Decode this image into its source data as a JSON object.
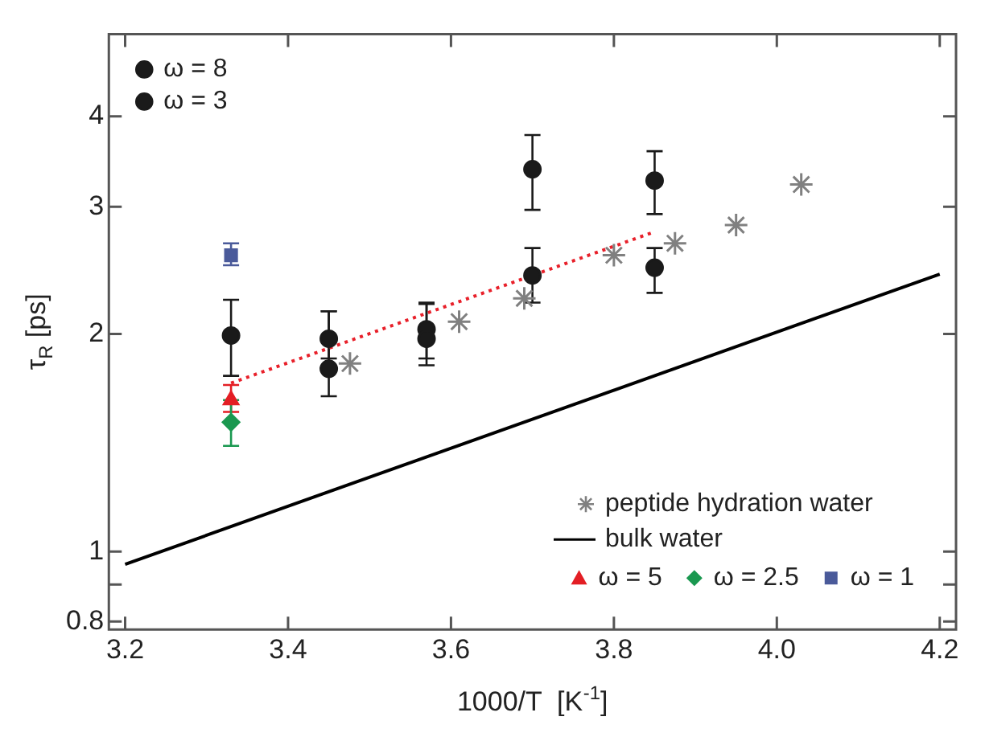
{
  "chart_data": {
    "type": "scatter",
    "xlabel": "1000/T  [K$^{-1}$]",
    "ylabel": "τ$_{R}$ [ps]",
    "log": "y",
    "xlim": [
      3.18,
      4.22
    ],
    "xticks": [
      {
        "value": 3.2,
        "label": "3.2"
      },
      {
        "value": 3.4,
        "label": "3.4"
      },
      {
        "value": 3.6,
        "label": "3.6"
      },
      {
        "value": 3.8,
        "label": "3.8"
      },
      {
        "value": 4.0,
        "label": "4.0"
      },
      {
        "value": 4.2,
        "label": "4.2"
      }
    ],
    "ylim": [
      0.78,
      5.2
    ],
    "yticks": [
      0.8,
      {
        "value": 0.9,
        "label": null
      },
      1,
      2,
      3,
      4
    ],
    "grid": false,
    "legend": "top left",
    "series": [
      {
        "name": "ω = 8",
        "marker": "circle",
        "color": "#1a1a1a",
        "x": [
          3.45,
          3.57,
          3.7,
          3.85
        ],
        "values": [
          1.79,
          1.97,
          3.38,
          3.26
        ],
        "errors": [
          [
            1.64,
            2.15
          ],
          [
            1.81,
            2.21
          ],
          [
            2.97,
            3.77
          ],
          [
            2.93,
            3.58
          ]
        ]
      },
      {
        "name": "ω = 3",
        "marker": "circle",
        "color": "#1a1a1a",
        "x": [
          3.33,
          3.45,
          3.57,
          3.7,
          3.85
        ],
        "values": [
          1.99,
          1.97,
          2.03,
          2.41,
          2.47
        ],
        "errors": [
          [
            1.75,
            2.23
          ],
          [
            1.85,
            2.15
          ],
          [
            1.85,
            2.2
          ],
          [
            2.21,
            2.63
          ],
          [
            2.28,
            2.63
          ]
        ]
      },
      {
        "name": "peptide hydration water",
        "marker": "cross",
        "color": "#808080",
        "x": [
          3.476,
          3.61,
          3.69,
          3.8,
          3.875,
          3.95,
          4.03
        ],
        "values": [
          1.82,
          2.08,
          2.24,
          2.57,
          2.67,
          2.83,
          3.22
        ]
      },
      {
        "name": "bulk water",
        "type": "line",
        "marker": "none",
        "line_style": "solid",
        "color": "#000000",
        "x": [
          3.2,
          4.2
        ],
        "values": [
          0.96,
          2.42
        ]
      },
      {
        "name": "ω = 5",
        "marker": "triangle",
        "color": "#e31e24",
        "x": [
          3.33
        ],
        "values": [
          1.62
        ],
        "errors": [
          [
            1.56,
            1.7
          ]
        ]
      },
      {
        "name": "ω = 2.5",
        "marker": "diamond",
        "color": "#1a9850",
        "x": [
          3.33
        ],
        "values": [
          1.51
        ],
        "errors": [
          [
            1.4,
            1.62
          ]
        ]
      },
      {
        "name": "ω = 1",
        "marker": "square",
        "color": "#4a5a9a",
        "x": [
          3.33
        ],
        "values": [
          2.57
        ],
        "errors": [
          [
            2.49,
            2.67
          ]
        ]
      },
      {
        "type": "line",
        "marker": "none",
        "line_style": "dotted",
        "color": "#e8202a",
        "x": [
          3.33,
          3.85
        ],
        "values": [
          1.71,
          2.77
        ]
      }
    ]
  }
}
